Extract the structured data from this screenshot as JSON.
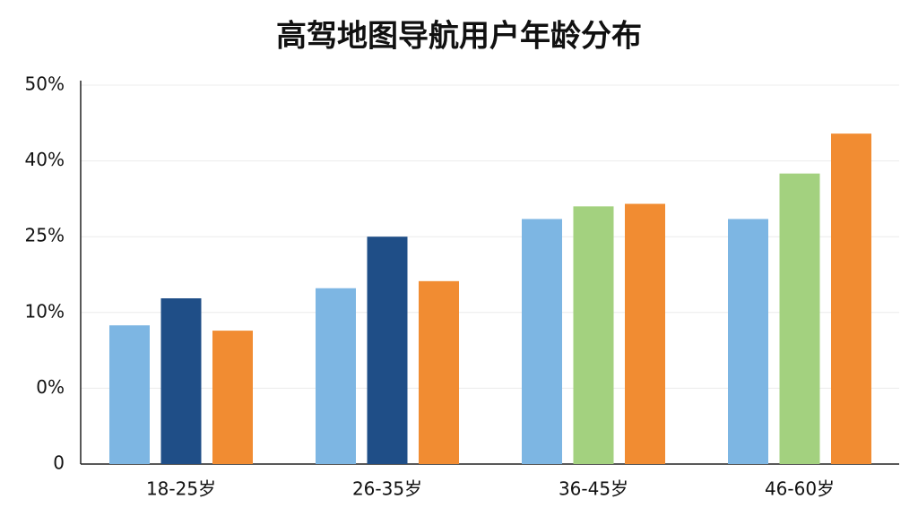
{
  "chart_data": {
    "type": "bar",
    "title": "高驾地图导航用户年龄分布",
    "categories": [
      "18-25岁",
      "26-35岁",
      "36-45岁",
      "46-60岁"
    ],
    "y_origin_label": "0",
    "ylim": [
      -10,
      50
    ],
    "yticks": [
      {
        "value": 0,
        "label": "0%"
      },
      {
        "value": 10,
        "label": "10%"
      },
      {
        "value": 25,
        "label": "25%"
      },
      {
        "value": 40,
        "label": "40%"
      },
      {
        "value": 50,
        "label": "50%"
      }
    ],
    "grid": true,
    "series": [
      {
        "colors": [
          "#7db6e3",
          "#7db6e3",
          "#7db6e3",
          "#7db6e3"
        ],
        "values": [
          8.3,
          14.8,
          28.5,
          28.5
        ]
      },
      {
        "colors": [
          "#1f4e87",
          "#1f4e87",
          "#a3d17f",
          "#a3d17f"
        ],
        "values": [
          12.8,
          25,
          31,
          37.5
        ]
      },
      {
        "colors": [
          "#f18c32",
          "#f18c32",
          "#f18c32",
          "#f18c32"
        ],
        "values": [
          7.6,
          16.2,
          31.5,
          43.6
        ]
      }
    ]
  }
}
